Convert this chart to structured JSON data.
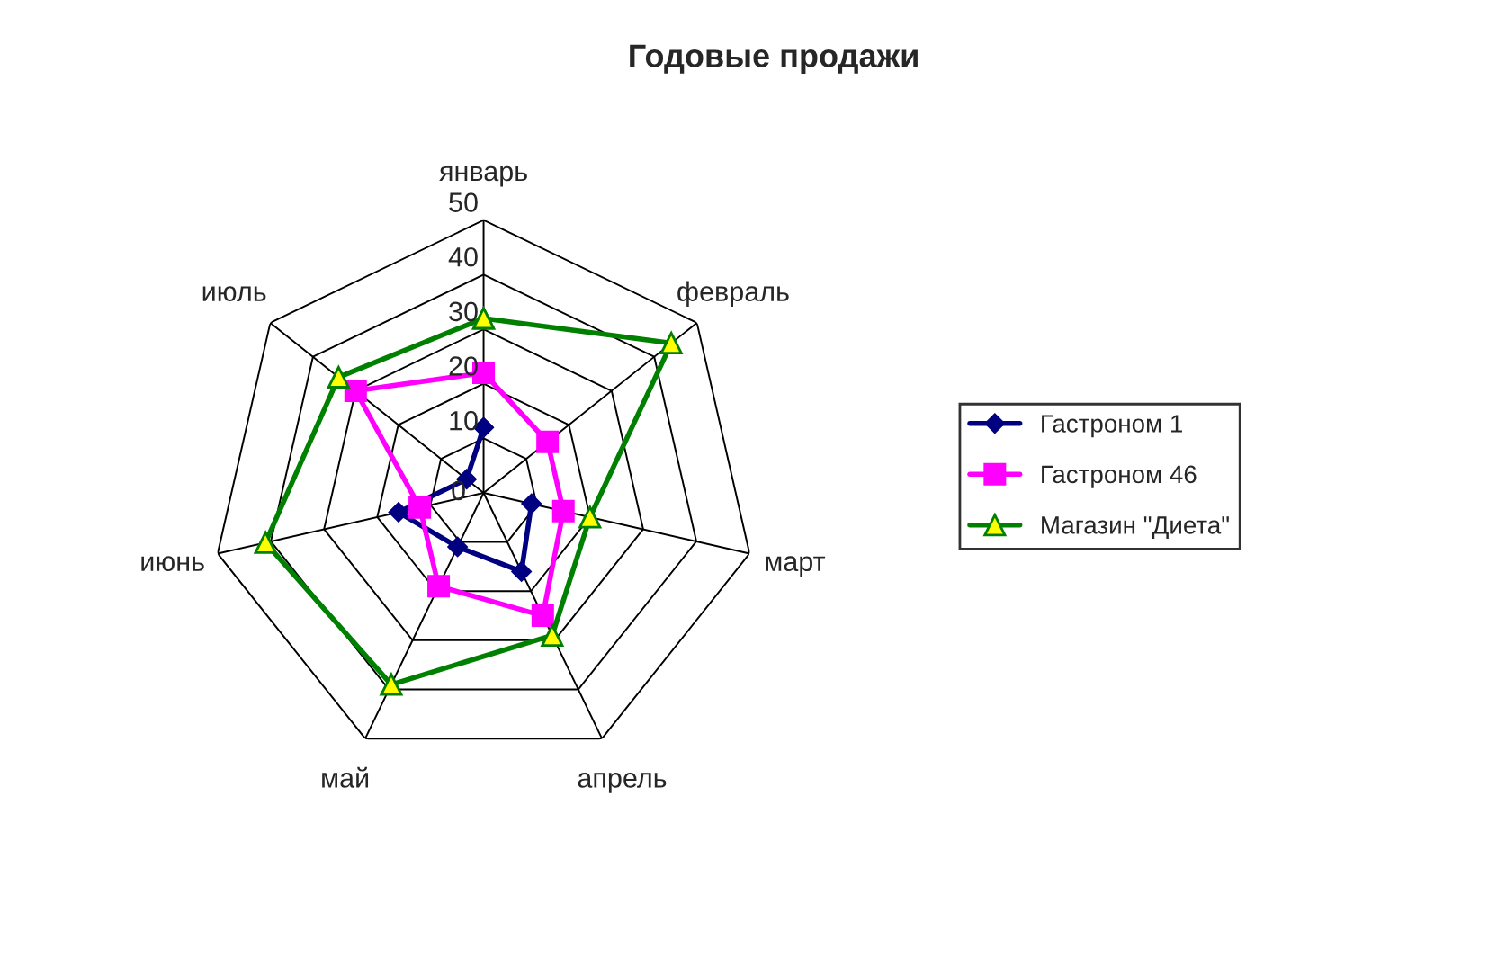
{
  "chart_data": {
    "type": "radar",
    "title": "Годовые продажи",
    "categories": [
      "январь",
      "февраль",
      "март",
      "апрель",
      "май",
      "июнь",
      "июль"
    ],
    "series": [
      {
        "name": "Гастроном 1",
        "color": "#000080",
        "marker": "diamond",
        "values": [
          12,
          null,
          9,
          16,
          11,
          16,
          4
        ]
      },
      {
        "name": "Гастроном 46",
        "color": "#ff00ff",
        "marker": "square",
        "values": [
          22,
          15,
          15,
          25,
          19,
          12,
          30
        ]
      },
      {
        "name": "Магазин \"Диета\"",
        "color": "#008000",
        "marker": "triangle",
        "values": [
          32,
          44,
          20,
          29,
          39,
          41,
          34
        ]
      }
    ],
    "ylim": [
      0,
      50
    ],
    "yticks": [
      0,
      10,
      20,
      30,
      40,
      50
    ],
    "grid": true,
    "legend": "right"
  }
}
